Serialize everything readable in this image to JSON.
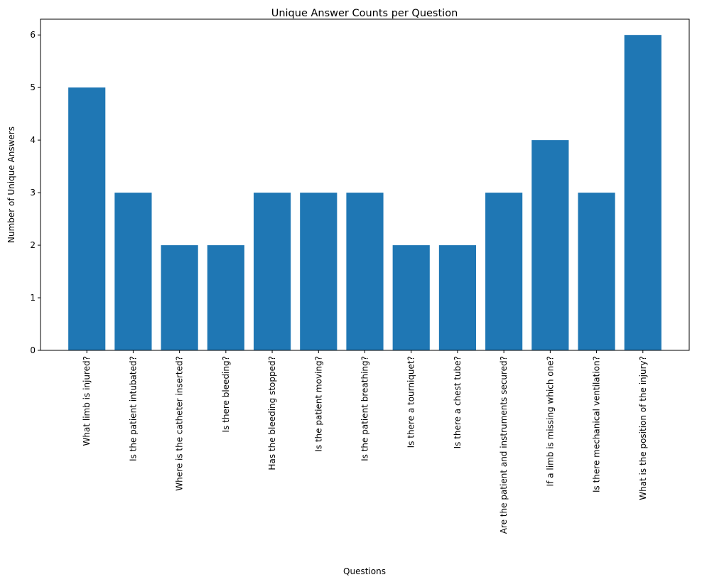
{
  "chart_data": {
    "type": "bar",
    "title": "Unique Answer Counts per Question",
    "xlabel": "Questions",
    "ylabel": "Number of Unique Answers",
    "categories": [
      "What limb is injured?",
      "Is the patient intubated?",
      "Where is the catheter inserted?",
      "Is there bleeding?",
      "Has the bleeding stopped?",
      "Is the patient moving?",
      "Is the patient breathing?",
      "Is there a tourniquet?",
      "Is there a chest tube?",
      "Are the patient and instruments secured?",
      "If a limb is missing which one?",
      "Is there mechanical ventilation?",
      "What is the position of the injury?"
    ],
    "values": [
      5,
      3,
      2,
      2,
      3,
      3,
      3,
      2,
      2,
      3,
      4,
      3,
      6
    ],
    "ylim": [
      0,
      6.3
    ],
    "yticks": [
      0,
      1,
      2,
      3,
      4,
      5,
      6
    ],
    "grid": false,
    "legend": false,
    "bar_color": "#1f77b4"
  }
}
